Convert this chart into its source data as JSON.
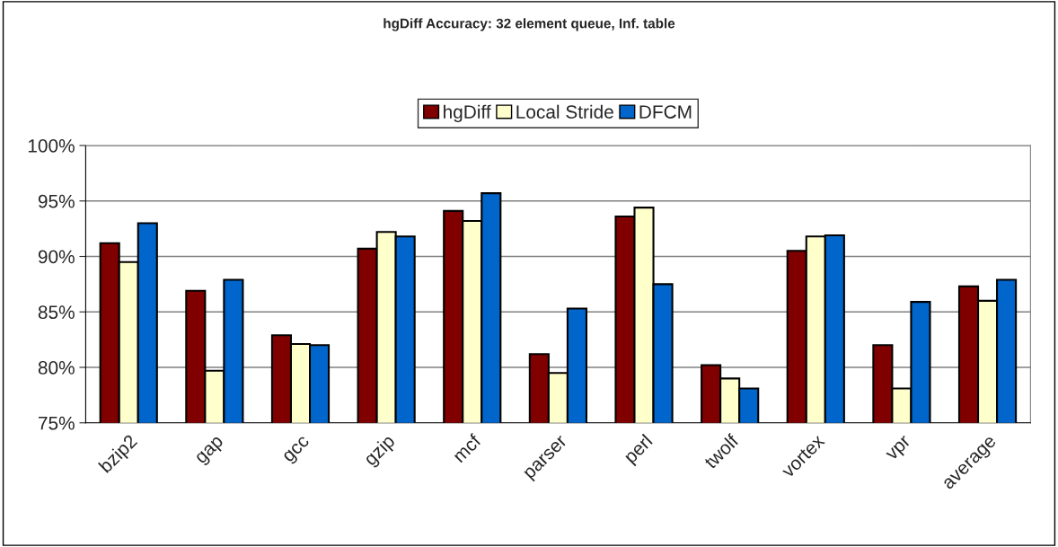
{
  "chart_data": {
    "type": "bar",
    "title": "hgDiff Accuracy: 32 element queue, Inf. table",
    "categories": [
      "bzip2",
      "gap",
      "gcc",
      "gzip",
      "mcf",
      "parser",
      "perl",
      "twolf",
      "vortex",
      "vpr",
      "average"
    ],
    "series": [
      {
        "name": "hgDiff",
        "color": "#800000",
        "values": [
          91.2,
          86.9,
          82.9,
          90.7,
          94.1,
          81.2,
          93.6,
          80.2,
          90.5,
          82.0,
          87.3
        ]
      },
      {
        "name": "Local Stride",
        "color": "#ffffcc",
        "values": [
          89.5,
          79.7,
          82.1,
          92.2,
          93.2,
          79.5,
          94.4,
          79.0,
          91.8,
          78.1,
          86.0
        ]
      },
      {
        "name": "DFCM",
        "color": "#0066cc",
        "values": [
          93.0,
          87.9,
          82.0,
          91.8,
          95.7,
          85.3,
          87.5,
          78.1,
          91.9,
          85.9,
          87.9
        ]
      }
    ],
    "ylim": [
      75,
      100
    ],
    "yticks": [
      {
        "value": 75,
        "label": "75%"
      },
      {
        "value": 80,
        "label": "80%"
      },
      {
        "value": 85,
        "label": "85%"
      },
      {
        "value": 90,
        "label": "90%"
      },
      {
        "value": 95,
        "label": "95%"
      },
      {
        "value": 100,
        "label": "100%"
      }
    ],
    "grid": "y",
    "legend": "top"
  }
}
